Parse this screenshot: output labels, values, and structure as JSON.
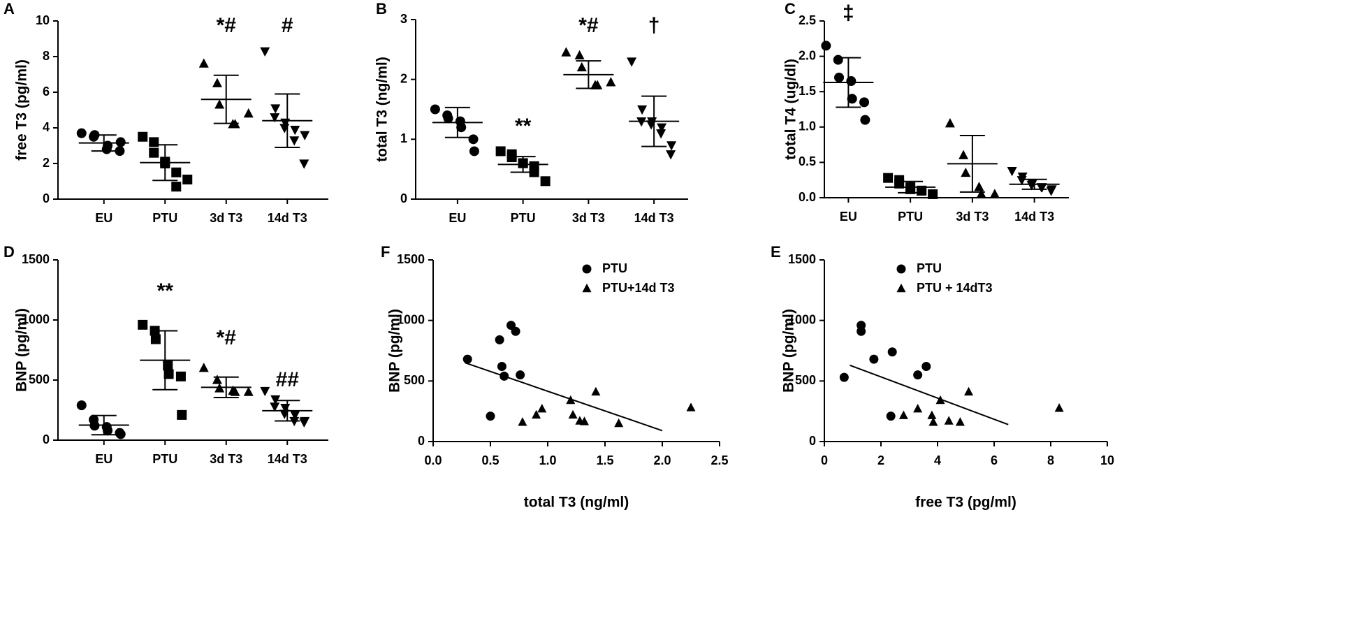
{
  "chart_data": [
    {
      "type": "dotplot",
      "label": "A",
      "ylabel": "free T3 (pg/ml)",
      "categories": [
        "EU",
        "PTU",
        "3d T3",
        "14d T3"
      ],
      "markers": [
        "circle",
        "square",
        "triangle",
        "triangle-down"
      ],
      "points": [
        [
          3.7,
          3.5,
          3.6,
          2.8,
          3.0,
          2.7,
          3.2
        ],
        [
          3.5,
          3.2,
          2.6,
          2.0,
          2.1,
          1.5,
          0.7,
          1.1
        ],
        [
          7.6,
          6.5,
          5.3,
          4.2,
          4.2,
          4.8
        ],
        [
          8.3,
          5.1,
          4.6,
          4.3,
          4.0,
          3.9,
          3.3,
          3.6,
          2.0
        ]
      ],
      "means": [
        3.15,
        2.05,
        5.6,
        4.4
      ],
      "sds": [
        0.45,
        1.0,
        1.35,
        1.5
      ],
      "annotations": [
        null,
        null,
        "*#",
        "#"
      ],
      "ylim": [
        0,
        10
      ],
      "yticks": [
        0,
        2,
        4,
        6,
        8,
        10
      ]
    },
    {
      "type": "dotplot",
      "label": "B",
      "ylabel": "total T3 (ng/ml)",
      "categories": [
        "EU",
        "PTU",
        "3d T3",
        "14d T3"
      ],
      "markers": [
        "circle",
        "square",
        "triangle",
        "triangle-down"
      ],
      "points": [
        [
          1.5,
          1.4,
          1.35,
          1.3,
          1.2,
          1.0,
          0.8
        ],
        [
          0.8,
          0.75,
          0.7,
          0.6,
          0.6,
          0.55,
          0.45,
          0.3
        ],
        [
          2.45,
          2.4,
          2.2,
          1.9,
          1.9,
          1.95
        ],
        [
          2.3,
          1.5,
          1.3,
          1.3,
          1.25,
          1.2,
          1.1,
          0.9,
          0.75
        ]
      ],
      "means": [
        1.28,
        0.58,
        2.08,
        1.3
      ],
      "sds": [
        0.25,
        0.13,
        0.23,
        0.42
      ],
      "annotations": [
        null,
        "**",
        "*#",
        "†"
      ],
      "ylim": [
        0,
        3
      ],
      "yticks": [
        0,
        1,
        2,
        3
      ]
    },
    {
      "type": "dotplot",
      "label": "C",
      "ylabel": "total T4 (ug/dl)",
      "categories": [
        "EU",
        "PTU",
        "3d T3",
        "14d T3"
      ],
      "markers": [
        "circle",
        "square",
        "triangle",
        "triangle-down"
      ],
      "points": [
        [
          2.15,
          1.95,
          1.7,
          1.65,
          1.4,
          1.35,
          1.1
        ],
        [
          0.28,
          0.25,
          0.2,
          0.15,
          0.12,
          0.1,
          0.1,
          0.05
        ],
        [
          1.05,
          0.6,
          0.35,
          0.15,
          0.05,
          0.05
        ],
        [
          0.38,
          0.3,
          0.25,
          0.2,
          0.18,
          0.15,
          0.15,
          0.12,
          0.1
        ]
      ],
      "means": [
        1.63,
        0.15,
        0.48,
        0.19
      ],
      "sds": [
        0.35,
        0.08,
        0.4,
        0.07
      ],
      "annotations": [
        "‡",
        null,
        null,
        null
      ],
      "ylim": [
        0,
        2.5
      ],
      "yticks": [
        {
          "value": 0,
          "label": "0.0"
        },
        0.5,
        {
          "value": 1,
          "label": "1.0"
        },
        1.5,
        {
          "value": 2,
          "label": "2.0"
        },
        2.5
      ]
    },
    {
      "type": "dotplot",
      "label": "D",
      "ylabel": "BNP (pg/ml)",
      "categories": [
        "EU",
        "PTU",
        "3d T3",
        "14d T3"
      ],
      "markers": [
        "circle",
        "square",
        "triangle",
        "triangle-down"
      ],
      "points": [
        [
          290,
          170,
          120,
          110,
          80,
          60,
          50
        ],
        [
          960,
          910,
          840,
          620,
          550,
          530,
          210
        ],
        [
          600,
          500,
          430,
          410,
          400,
          400
        ],
        [
          410,
          340,
          280,
          270,
          220,
          210,
          160,
          160,
          150
        ]
      ],
      "means": [
        125,
        665,
        440,
        245
      ],
      "sds": [
        80,
        245,
        85,
        85
      ],
      "annotations": [
        null,
        "**",
        "*#",
        "##"
      ],
      "ylim": [
        0,
        1500
      ],
      "yticks": [
        0,
        500,
        1000,
        1500
      ]
    },
    {
      "type": "scatter",
      "label": "F",
      "ylabel": "BNP (pg/ml)",
      "xlabel": "total T3 (ng/ml)",
      "legend": "upper right",
      "series": [
        {
          "name": "PTU",
          "marker": "circle",
          "x": [
            0.3,
            0.5,
            0.58,
            0.6,
            0.62,
            0.68,
            0.72,
            0.76
          ],
          "values": [
            680,
            210,
            840,
            620,
            540,
            960,
            910,
            550
          ]
        },
        {
          "name": "PTU+14d T3",
          "marker": "triangle",
          "x": [
            0.78,
            0.9,
            0.95,
            1.2,
            1.22,
            1.28,
            1.32,
            1.42,
            1.62,
            2.25
          ],
          "values": [
            160,
            220,
            270,
            340,
            220,
            170,
            165,
            410,
            150,
            280
          ]
        }
      ],
      "trendline": {
        "x": [
          0.28,
          2.0
        ],
        "values": [
          650,
          90
        ]
      },
      "xlim": [
        0,
        2.5
      ],
      "xticks": [
        {
          "value": 0,
          "label": "0.0"
        },
        0.5,
        {
          "value": 1,
          "label": "1.0"
        },
        1.5,
        {
          "value": 2,
          "label": "2.0"
        },
        2.5
      ],
      "ylim": [
        0,
        1500
      ],
      "yticks": [
        0,
        500,
        1000,
        1500
      ]
    },
    {
      "type": "scatter",
      "label": "E",
      "ylabel": "BNP (pg/ml)",
      "xlabel": "free T3 (pg/ml)",
      "legend": "upper right",
      "series": [
        {
          "name": "PTU",
          "marker": "circle",
          "x": [
            0.7,
            1.3,
            1.3,
            1.75,
            2.35,
            2.4,
            3.3,
            3.6
          ],
          "values": [
            530,
            960,
            910,
            680,
            210,
            740,
            550,
            620
          ]
        },
        {
          "name": "PTU + 14dT3",
          "marker": "triangle",
          "x": [
            2.8,
            3.3,
            3.8,
            3.85,
            4.1,
            4.4,
            4.8,
            5.1,
            8.3
          ],
          "values": [
            215,
            270,
            215,
            160,
            340,
            170,
            160,
            410,
            275
          ]
        }
      ],
      "trendline": {
        "x": [
          0.9,
          6.5
        ],
        "values": [
          630,
          140
        ]
      },
      "xlim": [
        0,
        10
      ],
      "xticks": [
        0,
        2,
        4,
        6,
        8,
        10
      ],
      "ylim": [
        0,
        1500
      ],
      "yticks": [
        0,
        500,
        1000,
        1500
      ]
    }
  ]
}
